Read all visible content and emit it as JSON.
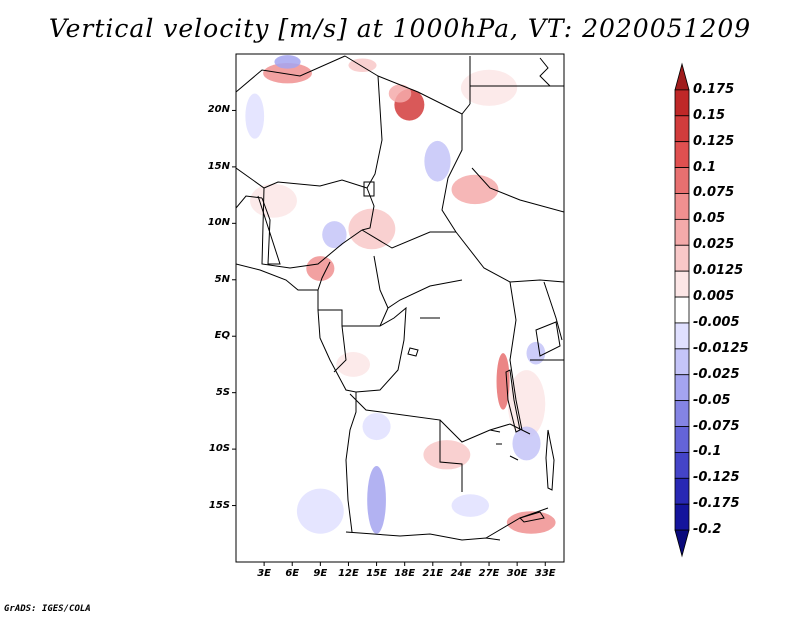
{
  "title": "Vertical velocity [m/s] at 1000hPa, VT: 2020051209",
  "credit": "GrADS: IGES/COLA",
  "map": {
    "lon_range": [
      0,
      35
    ],
    "lat_range": [
      -20,
      25
    ],
    "lat_ticks": [
      {
        "lat": 20,
        "label": "20N"
      },
      {
        "lat": 15,
        "label": "15N"
      },
      {
        "lat": 10,
        "label": "10N"
      },
      {
        "lat": 5,
        "label": "5N"
      },
      {
        "lat": 0,
        "label": "EQ"
      },
      {
        "lat": -5,
        "label": "5S"
      },
      {
        "lat": -10,
        "label": "10S"
      },
      {
        "lat": -15,
        "label": "15S"
      }
    ],
    "lon_ticks": [
      {
        "lon": 3,
        "label": "3E"
      },
      {
        "lon": 6,
        "label": "6E"
      },
      {
        "lon": 9,
        "label": "9E"
      },
      {
        "lon": 12,
        "label": "12E"
      },
      {
        "lon": 15,
        "label": "15E"
      },
      {
        "lon": 18,
        "label": "18E"
      },
      {
        "lon": 21,
        "label": "21E"
      },
      {
        "lon": 24,
        "label": "24E"
      },
      {
        "lon": 27,
        "label": "27E"
      },
      {
        "lon": 30,
        "label": "30E"
      },
      {
        "lon": 33,
        "label": "33E"
      }
    ]
  },
  "colorbar": {
    "levels": [
      "0.175",
      "0.15",
      "0.125",
      "0.1",
      "0.075",
      "0.05",
      "0.025",
      "0.0125",
      "0.005",
      "-0.005",
      "-0.0125",
      "-0.025",
      "-0.05",
      "-0.075",
      "-0.1",
      "-0.125",
      "-0.175",
      "-0.2"
    ],
    "colors": [
      "#a01c1c",
      "#bf2828",
      "#d23c3c",
      "#e05050",
      "#e87070",
      "#f09090",
      "#f4aaaa",
      "#f8c8c8",
      "#fce6e6",
      "#ffffff",
      "#e0e0ff",
      "#c4c4f8",
      "#a4a4f0",
      "#8484e4",
      "#6464d8",
      "#4444c8",
      "#2828b4",
      "#14149c",
      "#0a0a7c"
    ]
  },
  "features": [
    {
      "name": "red-patch",
      "lon": 5.5,
      "lat": 23.3,
      "rx": 2.6,
      "ry": 0.9,
      "color": "#f09090"
    },
    {
      "name": "red-patch",
      "lon": 18.5,
      "lat": 20.5,
      "rx": 1.6,
      "ry": 1.4,
      "color": "#d23c3c"
    },
    {
      "name": "red-patch",
      "lon": 17.5,
      "lat": 21.5,
      "rx": 1.2,
      "ry": 0.8,
      "color": "#f4aaaa"
    },
    {
      "name": "red-patch",
      "lon": 13.5,
      "lat": 24.0,
      "rx": 1.5,
      "ry": 0.6,
      "color": "#f8c8c8"
    },
    {
      "name": "red-patch",
      "lon": 27.0,
      "lat": 22.0,
      "rx": 3.0,
      "ry": 1.6,
      "color": "#fce6e6"
    },
    {
      "name": "red-patch",
      "lon": 25.5,
      "lat": 13.0,
      "rx": 2.5,
      "ry": 1.3,
      "color": "#f4aaaa"
    },
    {
      "name": "red-patch",
      "lon": 9.0,
      "lat": 6.0,
      "rx": 1.5,
      "ry": 1.1,
      "color": "#f09090"
    },
    {
      "name": "red-patch",
      "lon": 4.0,
      "lat": 12.0,
      "rx": 2.5,
      "ry": 1.5,
      "color": "#fce6e6"
    },
    {
      "name": "red-patch",
      "lon": 14.5,
      "lat": 9.5,
      "rx": 2.5,
      "ry": 1.8,
      "color": "#f8c8c8"
    },
    {
      "name": "red-patch",
      "lon": 28.5,
      "lat": -4.0,
      "rx": 0.7,
      "ry": 2.5,
      "color": "#e87070"
    },
    {
      "name": "red-patch",
      "lon": 31.5,
      "lat": -16.5,
      "rx": 2.6,
      "ry": 1.0,
      "color": "#f09090"
    },
    {
      "name": "red-patch",
      "lon": 22.5,
      "lat": -10.5,
      "rx": 2.5,
      "ry": 1.3,
      "color": "#f8c8c8"
    },
    {
      "name": "red-patch",
      "lon": 12.5,
      "lat": -2.5,
      "rx": 1.8,
      "ry": 1.1,
      "color": "#fce6e6"
    },
    {
      "name": "red-patch",
      "lon": 31.0,
      "lat": -6.0,
      "rx": 2.0,
      "ry": 3.0,
      "color": "#fce6e6"
    },
    {
      "name": "blue-patch",
      "lon": 5.5,
      "lat": 24.3,
      "rx": 1.4,
      "ry": 0.6,
      "color": "#a4a4f0"
    },
    {
      "name": "blue-patch",
      "lon": 21.5,
      "lat": 15.5,
      "rx": 1.4,
      "ry": 1.8,
      "color": "#c4c4f8"
    },
    {
      "name": "blue-patch",
      "lon": 2.0,
      "lat": 19.5,
      "rx": 1.0,
      "ry": 2.0,
      "color": "#e0e0ff"
    },
    {
      "name": "blue-patch",
      "lon": 10.5,
      "lat": 9.0,
      "rx": 1.3,
      "ry": 1.2,
      "color": "#c4c4f8"
    },
    {
      "name": "blue-patch",
      "lon": 15.0,
      "lat": -14.5,
      "rx": 1.0,
      "ry": 3.0,
      "color": "#a4a4f0"
    },
    {
      "name": "blue-patch",
      "lon": 31.0,
      "lat": -9.5,
      "rx": 1.5,
      "ry": 1.5,
      "color": "#c4c4f8"
    },
    {
      "name": "blue-patch",
      "lon": 25.0,
      "lat": -15.0,
      "rx": 2.0,
      "ry": 1.0,
      "color": "#e0e0ff"
    },
    {
      "name": "blue-patch",
      "lon": 32.0,
      "lat": -1.5,
      "rx": 1.0,
      "ry": 1.0,
      "color": "#c4c4f8"
    },
    {
      "name": "blue-patch",
      "lon": 9.0,
      "lat": -15.5,
      "rx": 2.5,
      "ry": 2.0,
      "color": "#e0e0ff"
    },
    {
      "name": "blue-patch",
      "lon": 15.0,
      "lat": -8.0,
      "rx": 1.5,
      "ry": 1.2,
      "color": "#e0e0ff"
    }
  ]
}
